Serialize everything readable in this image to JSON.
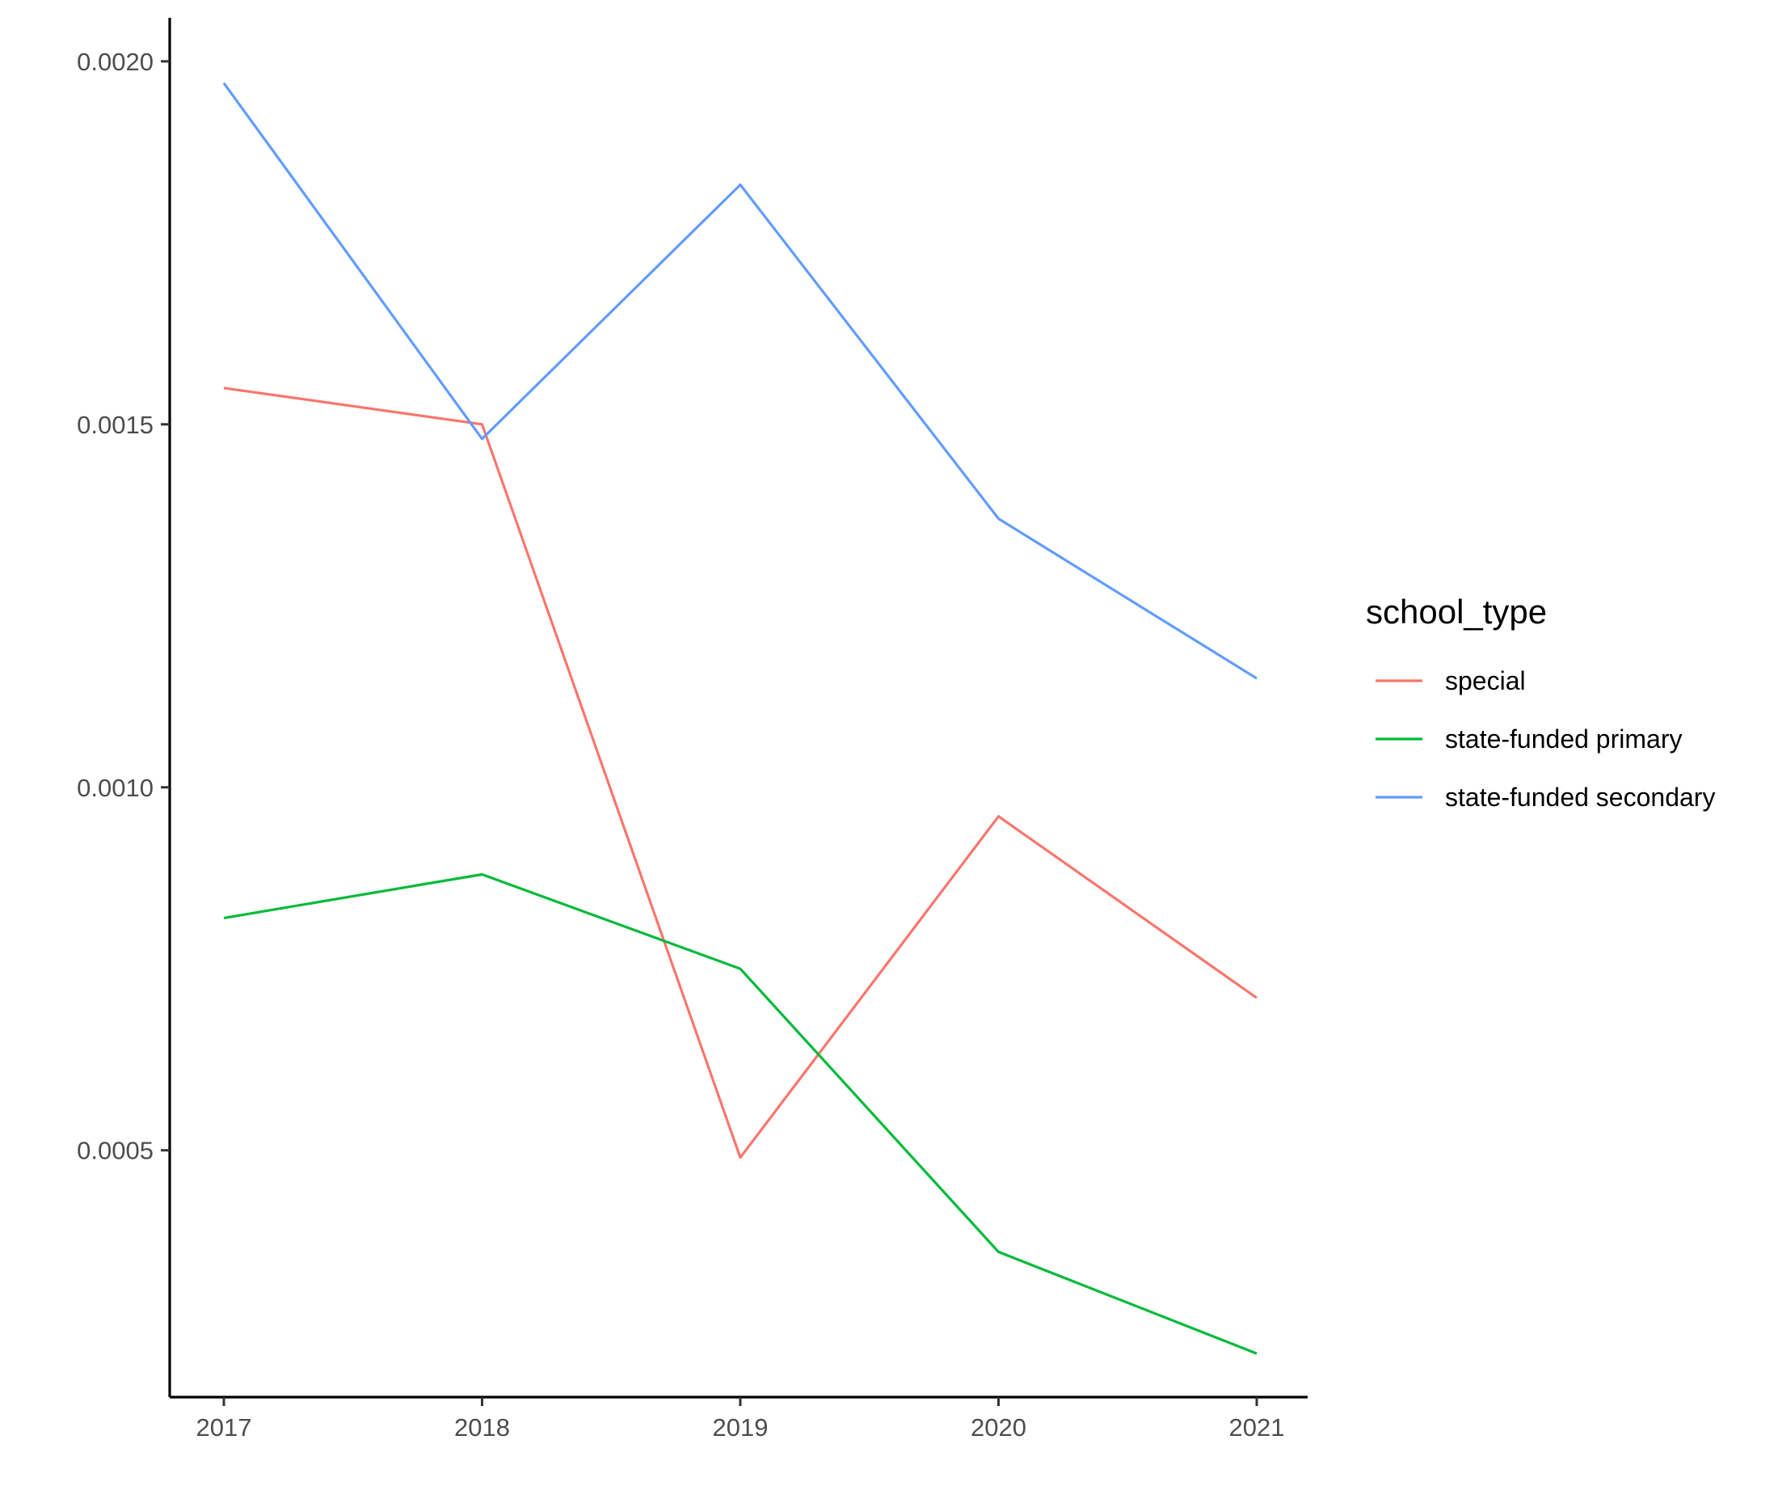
{
  "chart_data": {
    "type": "line",
    "title": "",
    "xlabel": "",
    "ylabel": "",
    "x": [
      2017,
      2018,
      2019,
      2020,
      2021
    ],
    "x_tick_labels": [
      "2017",
      "2018",
      "2019",
      "2020",
      "2021"
    ],
    "y_tick_labels": [
      "0.0005",
      "0.0010",
      "0.0015",
      "0.0020"
    ],
    "y_ticks": [
      0.0005,
      0.001,
      0.0015,
      0.002
    ],
    "ylim": [
      0.00016,
      0.00206
    ],
    "grid": false,
    "legend": {
      "title": "school_type",
      "position": "right"
    },
    "series": [
      {
        "name": "special",
        "color": "#F8766D",
        "values": [
          0.00155,
          0.0015,
          0.00049,
          0.00096,
          0.00071
        ]
      },
      {
        "name": "state-funded primary",
        "color": "#00BA38",
        "values": [
          0.00082,
          0.00088,
          0.00075,
          0.00036,
          0.00022
        ]
      },
      {
        "name": "state-funded secondary",
        "color": "#619CFF",
        "values": [
          0.00197,
          0.00148,
          0.00183,
          0.00137,
          0.00115
        ]
      }
    ]
  }
}
